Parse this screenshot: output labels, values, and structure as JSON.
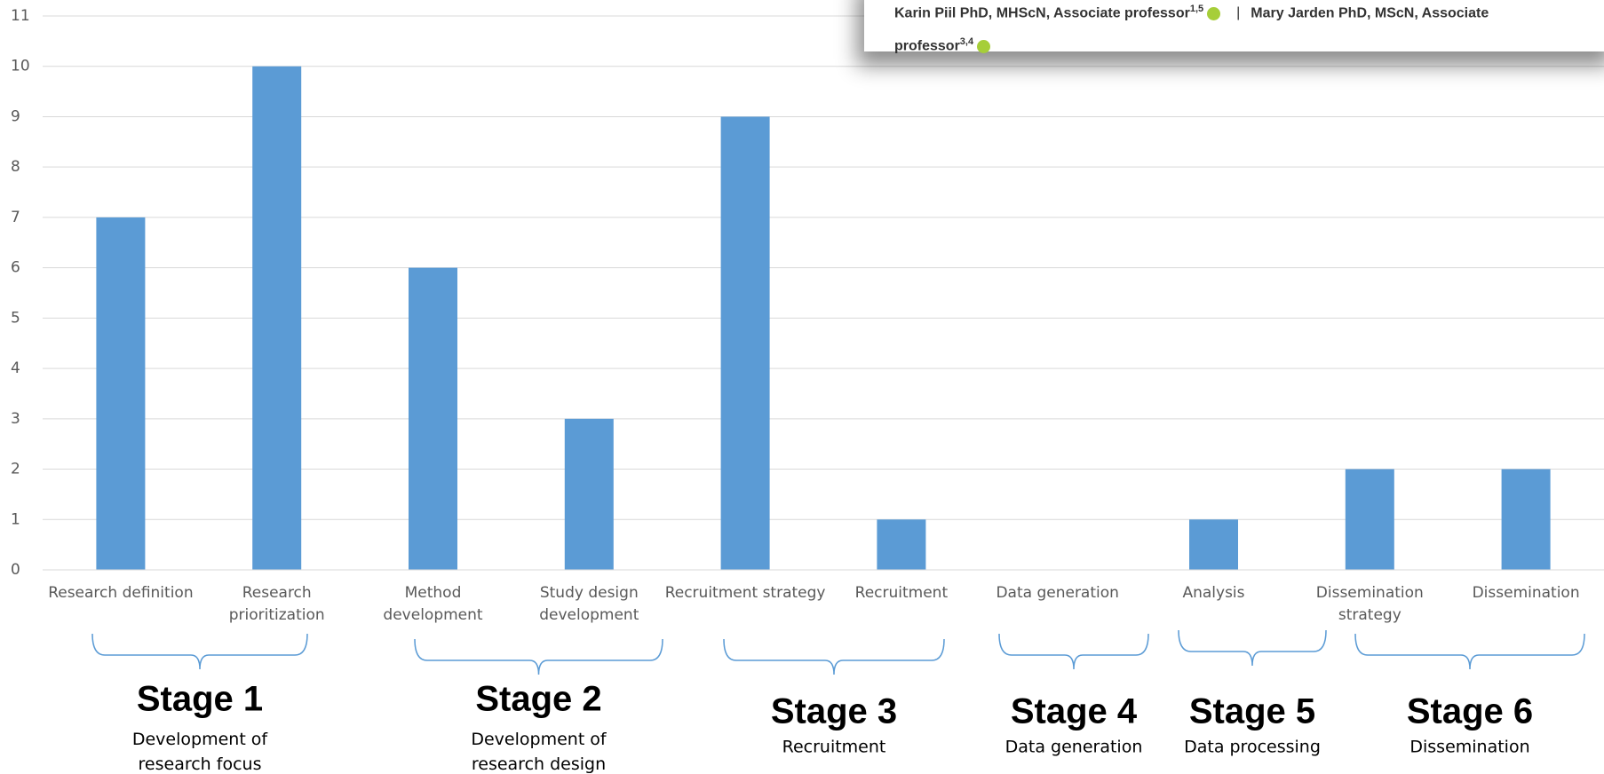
{
  "chart_data": {
    "type": "bar",
    "categories": [
      "Research definition",
      "Research prioritization",
      "Method development",
      "Study design development",
      "Recruitment strategy",
      "Recruitment",
      "Data generation",
      "Analysis",
      "Dissemination strategy",
      "Dissemination"
    ],
    "values": [
      7,
      10,
      6,
      3,
      9,
      1,
      0,
      1,
      2,
      2
    ],
    "color": "#5b9bd5",
    "ylim": [
      0,
      11
    ],
    "yticks": [
      0,
      1,
      2,
      3,
      4,
      5,
      6,
      7,
      8,
      9,
      10,
      11
    ],
    "grid": true,
    "stages": [
      {
        "label": "Stage 1",
        "description": "Development of research focus"
      },
      {
        "label": "Stage 2",
        "description": "Development of research design"
      },
      {
        "label": "Stage 3",
        "description": "Recruitment"
      },
      {
        "label": "Stage 4",
        "description": "Data generation"
      },
      {
        "label": "Stage 5",
        "description": "Data processing"
      },
      {
        "label": "Stage 6",
        "description": "Dissemination"
      }
    ]
  },
  "overlay": {
    "authors": [
      {
        "name": "Karin Piil PhD, MHScN, Associate professor",
        "affiliations": "1,5"
      },
      {
        "name": "Mary Jarden PhD, MScN, Associate professor",
        "affiliations": "3,4"
      }
    ],
    "separator": "|"
  }
}
